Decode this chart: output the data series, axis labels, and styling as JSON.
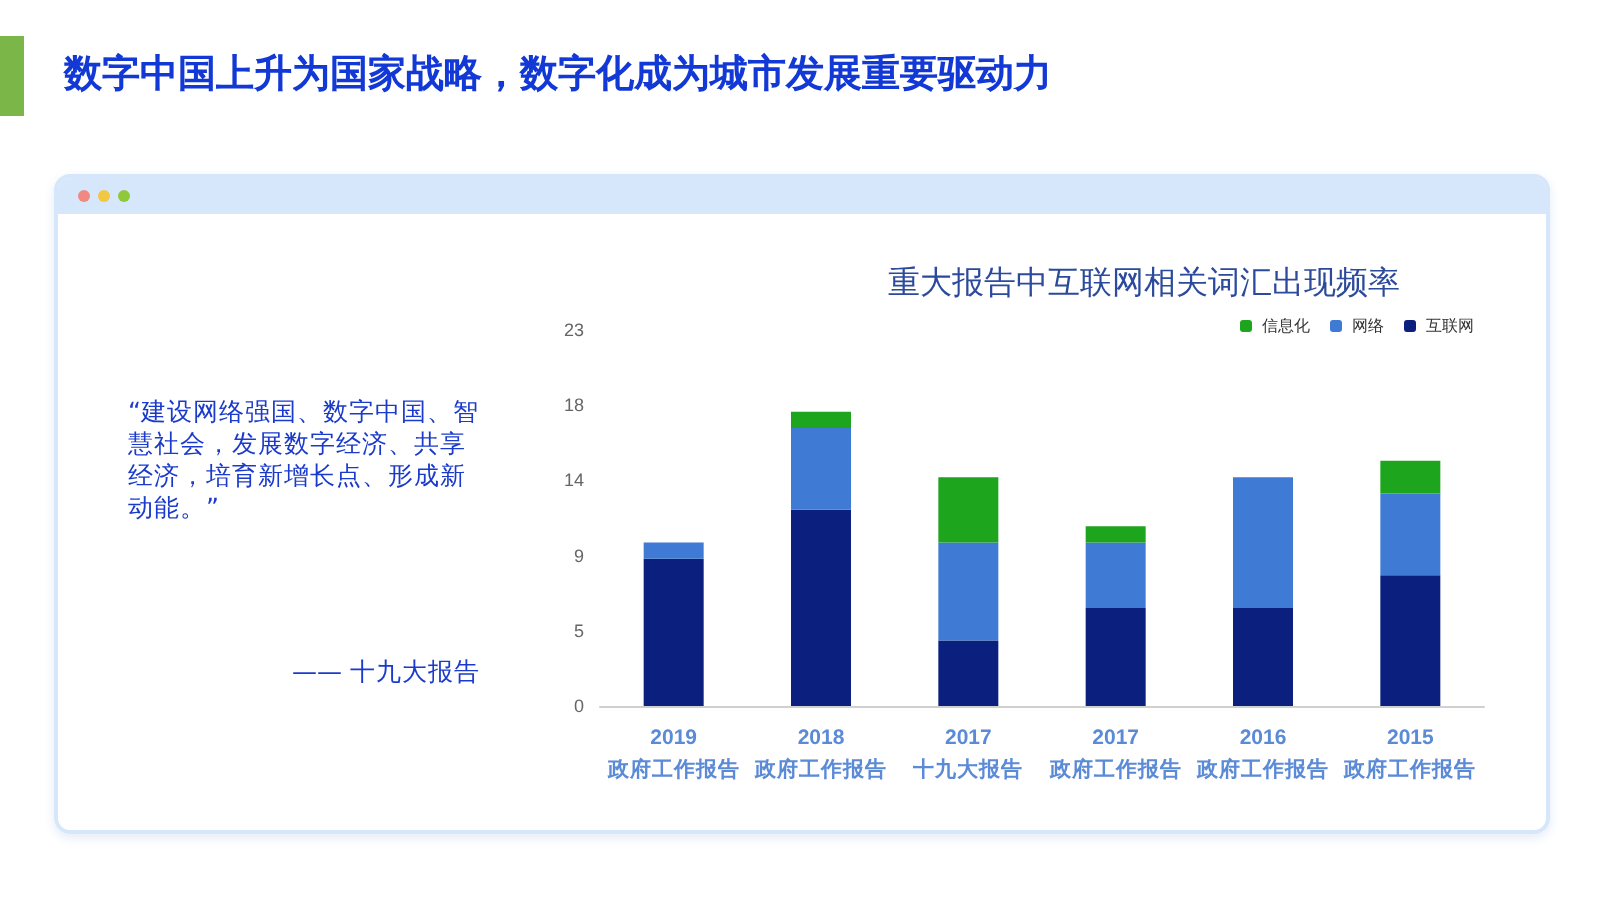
{
  "chart_data": {
    "type": "bar",
    "title": "数字中国上升为国家战略，数字化成为城市发展重要驱动力",
    "subtitle": "重大报告中互联网相关词汇出现频率",
    "categories": [
      "2019\n政府工作报告",
      "2018\n政府工作报告",
      "2017\n十九大报告",
      "2017\n政府工作报告",
      "2016\n政府工作报告",
      "2015\n政府工作报告"
    ],
    "stacked": true,
    "series": [
      {
        "name": "互联网",
        "color": "#0b1f7e",
        "values": [
          9,
          12,
          4,
          6,
          6,
          8
        ]
      },
      {
        "name": "网络",
        "color": "#3f7bd4",
        "values": [
          1,
          5,
          6,
          4,
          8,
          5
        ]
      },
      {
        "name": "信息化",
        "color": "#1ea51e",
        "values": [
          0,
          1,
          4,
          1,
          0,
          2
        ]
      }
    ],
    "ylim": [
      0,
      23
    ],
    "yticks": [
      0,
      {
        "value": 4.6,
        "label": "5"
      },
      {
        "value": 9.2,
        "label": "9"
      },
      {
        "value": 13.8,
        "label": "14"
      },
      {
        "value": 18.4,
        "label": "18"
      },
      23
    ],
    "grid": false,
    "legend": "top right",
    "annotations": [
      "“建设网络强国、数字中国、智慧社会，发展数字经济、共享经济，培育新增长点、形成新动能。”",
      "—— 十九大报告"
    ]
  }
}
